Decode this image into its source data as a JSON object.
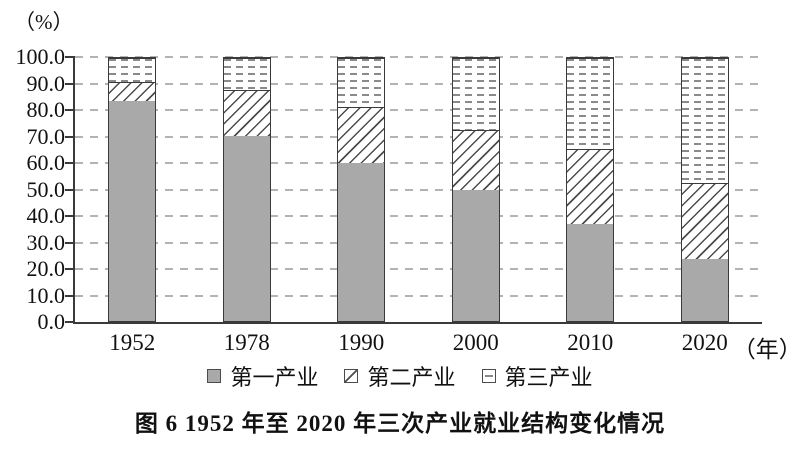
{
  "chart_data": {
    "type": "bar",
    "stacked": true,
    "title": "图 6  1952 年至 2020 年三次产业就业结构变化情况",
    "unit_y": "（%）",
    "unit_x": "（年）",
    "categories": [
      "1952",
      "1978",
      "1990",
      "2000",
      "2010",
      "2020"
    ],
    "series": [
      {
        "key": "primary-industry",
        "name": "第一产业",
        "pattern": "solid-gray",
        "values": [
          83.5,
          70.5,
          60.1,
          50.0,
          36.7,
          23.6
        ]
      },
      {
        "key": "secondary-industry",
        "name": "第二产业",
        "pattern": "diagonal-hatch",
        "values": [
          7.4,
          17.3,
          21.4,
          22.5,
          28.7,
          28.7
        ]
      },
      {
        "key": "tertiary-industry",
        "name": "第三产业",
        "pattern": "dash-rows",
        "values": [
          9.1,
          12.2,
          18.5,
          27.5,
          34.6,
          47.7
        ]
      }
    ],
    "ylim": [
      0,
      100
    ],
    "yticks": [
      "100.0",
      "90.0",
      "80.0",
      "70.0",
      "60.0",
      "50.0",
      "40.0",
      "30.0",
      "20.0",
      "10.0",
      "0.0"
    ],
    "grid": "horizontal-dashed",
    "legend_position": "bottom"
  },
  "colors": {
    "bar_fill_primary": "#a9a9a9",
    "hatch_line": "#4c4c4c",
    "dash_line": "#8a8a8a",
    "axis_line": "#3a3a3a",
    "gridline": "#b3b3b3",
    "text": "#111111",
    "background": "#ffffff"
  }
}
